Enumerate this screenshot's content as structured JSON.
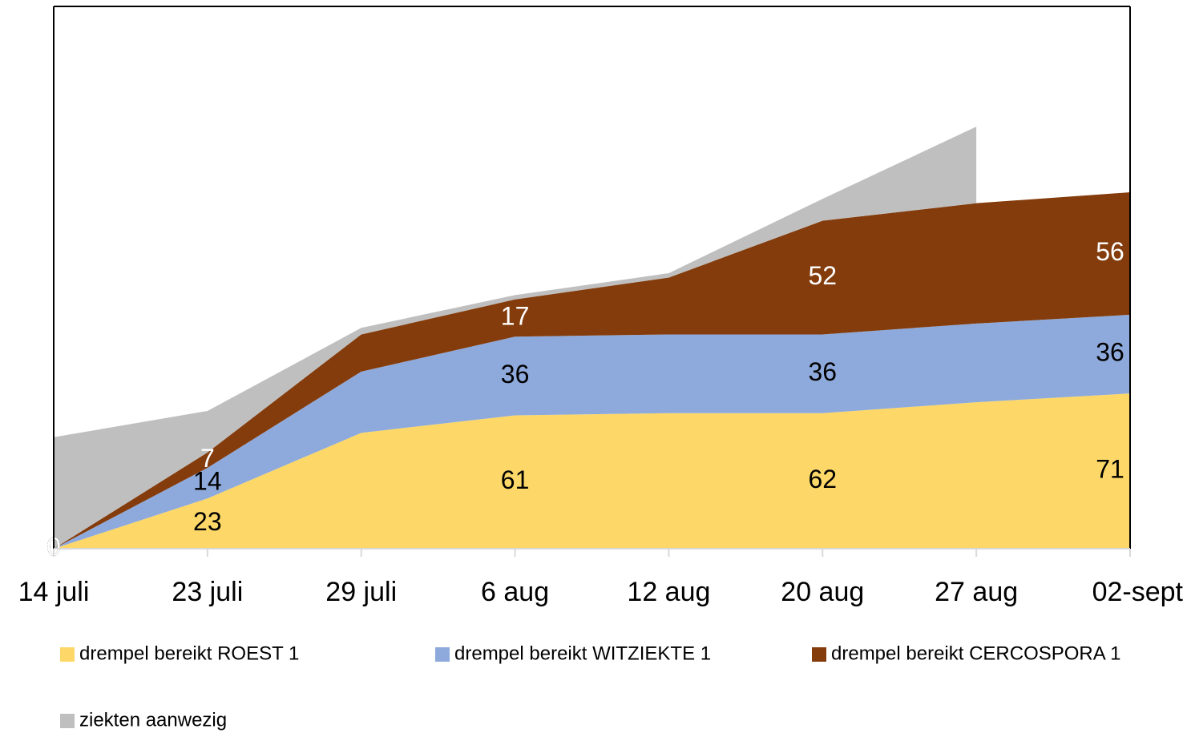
{
  "chart_data": {
    "type": "stacked_area",
    "categories": [
      "14 juli",
      "23 juli",
      "29 juli",
      "6 aug",
      "12 aug",
      "20 aug",
      "27 aug",
      "02-sept"
    ],
    "series": [
      {
        "name": "drempel bereikt ROEST 1",
        "color": "#fdd868",
        "label_color": "#000000",
        "values": [
          0,
          23,
          53,
          61,
          62,
          62,
          67,
          71
        ],
        "value_labels": [
          "0",
          "23",
          null,
          "61",
          null,
          "62",
          null,
          "71"
        ]
      },
      {
        "name": "drempel bereikt WITZIEKTE 1",
        "color": "#8eaadc",
        "label_color": "#000000",
        "values": [
          0,
          14,
          28,
          36,
          36,
          36,
          36,
          36
        ],
        "value_labels": [
          "0",
          "14",
          null,
          "36",
          null,
          "36",
          null,
          "36"
        ]
      },
      {
        "name": "drempel bereikt CERCOSPORA 1",
        "color": "#843c0c",
        "label_color": "#ffffff",
        "values": [
          0,
          7,
          17,
          17,
          26,
          52,
          55,
          56
        ],
        "value_labels": [
          "0",
          "7",
          null,
          "17",
          null,
          "52",
          null,
          "56"
        ]
      },
      {
        "name": "ziekten aanwezig",
        "color": "#bfbfbf",
        "values": [
          51,
          19,
          3,
          2,
          2,
          10,
          35,
          null
        ]
      }
    ],
    "ylim": [
      0,
      248
    ]
  }
}
